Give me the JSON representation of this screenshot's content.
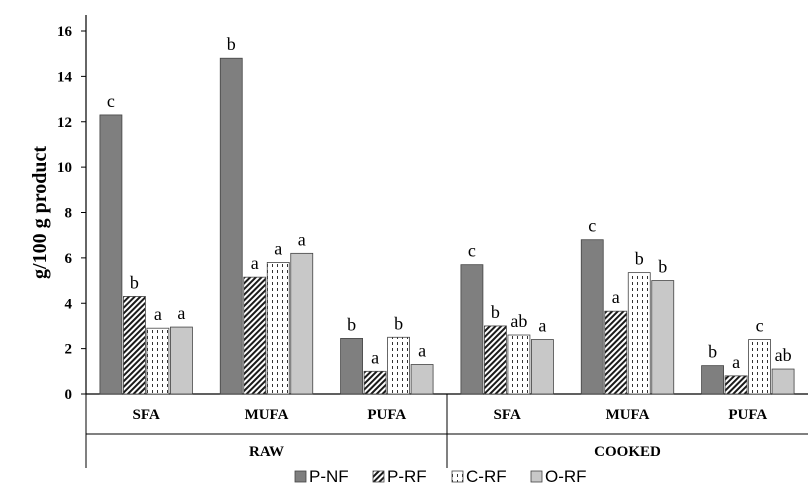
{
  "chart_data": {
    "type": "bar",
    "ylabel": "g/100 g product",
    "ylim": [
      0,
      16
    ],
    "yticks": [
      0,
      2,
      4,
      6,
      8,
      10,
      12,
      14,
      16
    ],
    "groups": [
      {
        "label": "RAW",
        "categories": [
          "SFA",
          "MUFA",
          "PUFA"
        ]
      },
      {
        "label": "COOKED",
        "categories": [
          "SFA",
          "MUFA",
          "PUFA"
        ]
      }
    ],
    "categories": [
      "SFA",
      "MUFA",
      "PUFA",
      "SFA",
      "MUFA",
      "PUFA"
    ],
    "series": [
      {
        "name": "P-NF",
        "values": [
          12.3,
          14.8,
          2.45,
          5.7,
          6.8,
          1.25
        ],
        "labels": [
          "c",
          "b",
          "b",
          "c",
          "c",
          "b"
        ]
      },
      {
        "name": "P-RF",
        "values": [
          4.3,
          5.15,
          1.0,
          3.0,
          3.65,
          0.8
        ],
        "labels": [
          "b",
          "a",
          "a",
          "b",
          "a",
          "a"
        ]
      },
      {
        "name": "C-RF",
        "values": [
          2.9,
          5.8,
          2.5,
          2.6,
          5.35,
          2.4
        ],
        "labels": [
          "a",
          "a",
          "b",
          "ab",
          "b",
          "c"
        ]
      },
      {
        "name": "O-RF",
        "values": [
          2.95,
          6.2,
          1.3,
          2.4,
          5.0,
          1.1
        ],
        "labels": [
          "a",
          "a",
          "a",
          "a",
          "b",
          "ab"
        ]
      }
    ],
    "colors": {
      "P-NF": "#7f7f7f",
      "P-RF": "#1a1a1a",
      "C-RF": "#ffffff",
      "O-RF": "#c8c8c8"
    },
    "patterns": {
      "P-NF": "solid",
      "P-RF": "diagonal-hatch",
      "C-RF": "dashed-vertical",
      "O-RF": "solid"
    },
    "legend_position": "bottom",
    "grid": false
  }
}
